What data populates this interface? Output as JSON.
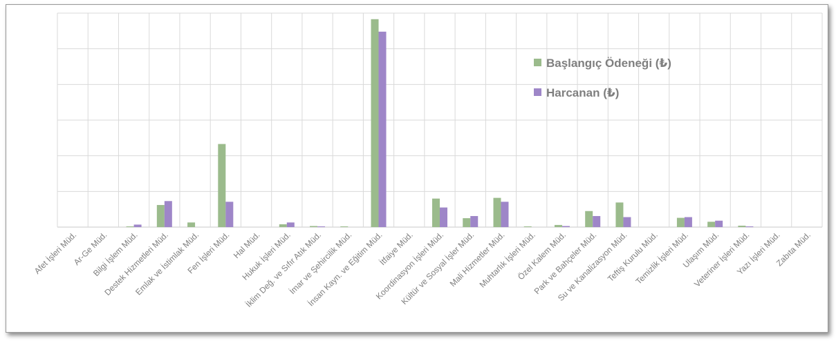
{
  "chart_data": {
    "type": "bar",
    "title": "",
    "xlabel": "",
    "ylabel": "",
    "ylim": [
      0,
      6
    ],
    "grid": true,
    "legend_position": "top-right",
    "categories": [
      "Afet İşleri Müd.",
      "Ar-Ge Müd.",
      "Bilgi İşlem Müd.",
      "Destek Hizmetleri Müd.",
      "Emlak ve İstimlak Müd.",
      "Fen İşleri Müd.",
      "Hal Müd.",
      "Hukuk İşleri Müd.",
      "İklim Değ. ve Sıfır Atık Müd.",
      "İmar ve Şehircilik Müd.",
      "İnsan Kayn. ve Eğitim Müd.",
      "İtfaiye Müd.",
      "Koordinasyon İşleri Müd.",
      "Kültür ve Sosyal İşler Müd.",
      "Mali Hizmetler Müd.",
      "Muhtarlık İşleri Müd.",
      "Özel Kalem Müd.",
      "Park ve Bahçeler Müd.",
      "Su ve Kanalizasyon Müd.",
      "Teftiş Kurulu Müd.",
      "Temizlik İşleri Müd.",
      "Ulaşım Müd.",
      "Veteriner İşleri Müd.",
      "Yazı İşleri Müd.",
      "Zabıta Müd."
    ],
    "series": [
      {
        "name": "Başlangıç Ödeneği (₺)",
        "color": "#9bbb8c",
        "values": [
          0.0,
          0.0,
          0.02,
          0.62,
          0.13,
          2.33,
          0.0,
          0.08,
          0.03,
          0.02,
          5.83,
          0.0,
          0.8,
          0.25,
          0.82,
          0.02,
          0.06,
          0.45,
          0.69,
          0.0,
          0.26,
          0.15,
          0.04,
          0.0,
          0.0
        ]
      },
      {
        "name": "Harcanan (₺)",
        "color": "#9e86c8",
        "values": [
          0.0,
          0.0,
          0.07,
          0.73,
          0.0,
          0.71,
          0.0,
          0.13,
          0.02,
          0.0,
          5.48,
          0.0,
          0.55,
          0.31,
          0.71,
          0.0,
          0.03,
          0.31,
          0.28,
          0.0,
          0.28,
          0.18,
          0.02,
          0.0,
          0.0
        ]
      }
    ]
  }
}
